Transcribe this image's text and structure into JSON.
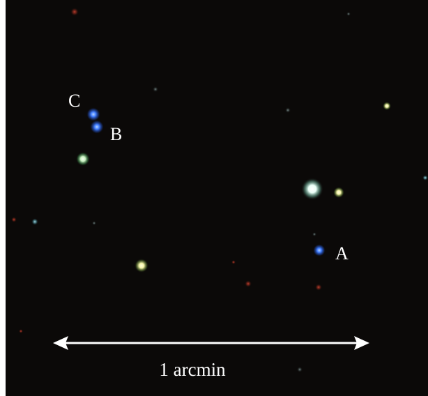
{
  "image": {
    "background_color": "#0b0908",
    "frame_color": "#ffffff"
  },
  "labels": {
    "star_a": "A",
    "star_b": "B",
    "star_c": "C"
  },
  "scale_bar": {
    "label": "1 arcmin",
    "color": "#ffffff"
  },
  "star_colors": {
    "blue": "#3f7cff",
    "white": "#ffffff",
    "yellow_green": "#f4f3a8",
    "red": "#a23020",
    "teal": "#7fc6d0"
  }
}
